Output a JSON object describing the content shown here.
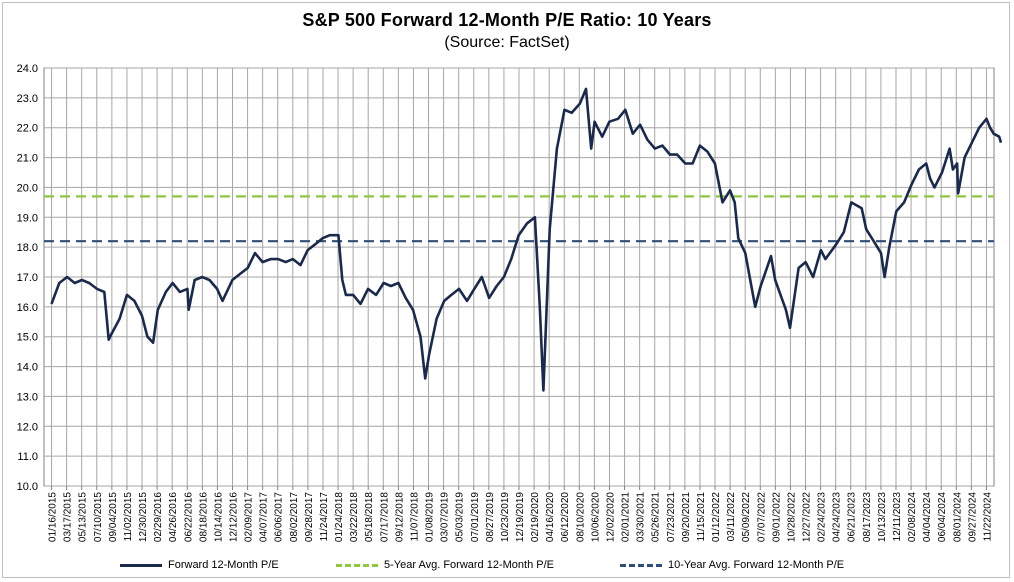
{
  "chart_data": {
    "type": "line",
    "title": "S&P 500 Forward 12-Month P/E Ratio: 10 Years",
    "subtitle": "(Source: FactSet)",
    "ylim": [
      10.0,
      24.0
    ],
    "yticks": [
      "10.0",
      "11.0",
      "12.0",
      "13.0",
      "14.0",
      "15.0",
      "16.0",
      "17.0",
      "18.0",
      "19.0",
      "20.0",
      "21.0",
      "22.0",
      "23.0",
      "24.0"
    ],
    "xticks": [
      "01/16/2015",
      "03/17/2015",
      "05/13/2015",
      "07/10/2015",
      "09/04/2015",
      "11/02/2015",
      "12/30/2015",
      "02/29/2016",
      "04/26/2016",
      "06/22/2016",
      "08/18/2016",
      "10/14/2016",
      "12/12/2016",
      "02/09/2017",
      "04/07/2017",
      "06/06/2017",
      "08/02/2017",
      "09/28/2017",
      "11/24/2017",
      "01/24/2018",
      "03/22/2018",
      "05/18/2018",
      "07/17/2018",
      "09/12/2018",
      "11/07/2018",
      "01/08/2019",
      "03/07/2019",
      "05/03/2019",
      "07/01/2019",
      "08/27/2019",
      "10/23/2019",
      "12/19/2019",
      "02/19/2020",
      "04/16/2020",
      "06/12/2020",
      "08/10/2020",
      "10/06/2020",
      "12/02/2020",
      "02/01/2021",
      "03/30/2021",
      "05/26/2021",
      "07/23/2021",
      "09/20/2021",
      "11/15/2021",
      "01/12/2022",
      "03/11/2022",
      "05/09/2022",
      "07/07/2022",
      "09/01/2022",
      "10/28/2022",
      "12/27/2022",
      "02/24/2023",
      "04/24/2023",
      "06/21/2023",
      "08/17/2023",
      "10/13/2023",
      "12/11/2023",
      "02/08/2024",
      "04/04/2024",
      "06/04/2024",
      "08/01/2024",
      "09/27/2024",
      "11/22/2024"
    ],
    "grid": true,
    "legend_position": "bottom",
    "series": [
      {
        "name": "Forward 12-Month P/E",
        "color": "#1b2a4a",
        "style": "solid",
        "x": [
          "01/16/2015",
          "02/15/2015",
          "03/17/2015",
          "04/15/2015",
          "05/13/2015",
          "06/10/2015",
          "07/10/2015",
          "08/07/2015",
          "08/24/2015",
          "09/04/2015",
          "10/05/2015",
          "11/02/2015",
          "12/01/2015",
          "12/30/2015",
          "01/20/2016",
          "02/11/2016",
          "02/29/2016",
          "03/31/2016",
          "04/26/2016",
          "05/24/2016",
          "06/22/2016",
          "06/27/2016",
          "07/20/2016",
          "08/18/2016",
          "09/15/2016",
          "10/14/2016",
          "11/04/2016",
          "12/12/2016",
          "01/10/2017",
          "02/09/2017",
          "03/09/2017",
          "04/07/2017",
          "05/08/2017",
          "06/06/2017",
          "07/05/2017",
          "08/02/2017",
          "08/31/2017",
          "09/28/2017",
          "10/27/2017",
          "11/24/2017",
          "12/22/2017",
          "01/24/2018",
          "02/08/2018",
          "02/22/2018",
          "03/22/2018",
          "04/19/2018",
          "05/18/2018",
          "06/18/2018",
          "07/17/2018",
          "08/14/2018",
          "09/12/2018",
          "10/10/2018",
          "11/07/2018",
          "12/06/2018",
          "12/24/2018",
          "01/08/2019",
          "02/06/2019",
          "03/07/2019",
          "04/04/2019",
          "05/03/2019",
          "06/03/2019",
          "07/01/2019",
          "07/30/2019",
          "08/27/2019",
          "09/25/2019",
          "10/23/2019",
          "11/20/2019",
          "12/19/2019",
          "01/20/2020",
          "02/19/2020",
          "03/09/2020",
          "03/23/2020",
          "04/16/2020",
          "05/14/2020",
          "06/12/2020",
          "07/10/2020",
          "08/10/2020",
          "09/03/2020",
          "09/23/2020",
          "10/06/2020",
          "11/04/2020",
          "12/02/2020",
          "01/04/2021",
          "02/01/2021",
          "03/02/2021",
          "03/30/2021",
          "04/27/2021",
          "05/26/2021",
          "06/24/2021",
          "07/23/2021",
          "08/20/2021",
          "09/20/2021",
          "10/18/2021",
          "11/15/2021",
          "12/14/2021",
          "01/12/2022",
          "02/10/2022",
          "03/11/2022",
          "03/29/2022",
          "04/12/2022",
          "05/09/2022",
          "06/16/2022",
          "07/07/2022",
          "08/16/2022",
          "09/01/2022",
          "09/30/2022",
          "10/12/2022",
          "10/28/2022",
          "11/30/2022",
          "12/27/2022",
          "01/25/2023",
          "02/24/2023",
          "03/13/2023",
          "04/24/2023",
          "05/23/2023",
          "06/21/2023",
          "07/31/2023",
          "08/17/2023",
          "09/15/2023",
          "10/13/2023",
          "10/27/2023",
          "11/14/2023",
          "12/11/2023",
          "01/10/2024",
          "02/08/2024",
          "03/07/2024",
          "04/04/2024",
          "04/19/2024",
          "05/06/2024",
          "06/04/2024",
          "07/03/2024",
          "07/16/2024",
          "08/01/2024",
          "08/05/2024",
          "08/30/2024",
          "09/27/2024",
          "10/25/2024",
          "11/22/2024",
          "12/06/2024",
          "12/20/2024",
          "01/10/2025",
          "01/17/2025"
        ],
        "values": [
          16.1,
          16.8,
          17.0,
          16.8,
          16.9,
          16.8,
          16.6,
          16.5,
          14.9,
          15.1,
          15.6,
          16.4,
          16.2,
          15.7,
          15.0,
          14.8,
          15.9,
          16.5,
          16.8,
          16.5,
          16.6,
          15.9,
          16.9,
          17.0,
          16.9,
          16.6,
          16.2,
          16.9,
          17.1,
          17.3,
          17.8,
          17.5,
          17.6,
          17.6,
          17.5,
          17.6,
          17.4,
          17.9,
          18.1,
          18.3,
          18.4,
          18.4,
          16.9,
          16.4,
          16.4,
          16.1,
          16.6,
          16.4,
          16.8,
          16.7,
          16.8,
          16.3,
          15.9,
          15.0,
          13.6,
          14.4,
          15.6,
          16.2,
          16.4,
          16.6,
          16.2,
          16.6,
          17.0,
          16.3,
          16.7,
          17.0,
          17.6,
          18.4,
          18.8,
          19.0,
          16.0,
          13.2,
          18.6,
          21.3,
          22.6,
          22.5,
          22.8,
          23.3,
          21.3,
          22.2,
          21.7,
          22.2,
          22.3,
          22.6,
          21.8,
          22.1,
          21.6,
          21.3,
          21.4,
          21.1,
          21.1,
          20.8,
          20.8,
          21.4,
          21.2,
          20.8,
          19.5,
          19.9,
          19.5,
          18.3,
          17.8,
          16.0,
          16.7,
          17.7,
          16.9,
          16.2,
          15.9,
          15.3,
          17.3,
          17.5,
          17.0,
          17.9,
          17.6,
          18.1,
          18.5,
          19.5,
          19.3,
          18.6,
          18.2,
          17.8,
          17.0,
          18.0,
          19.2,
          19.5,
          20.1,
          20.6,
          20.8,
          20.3,
          20.0,
          20.5,
          21.3,
          20.6,
          20.8,
          19.8,
          21.0,
          21.5,
          22.0,
          22.3,
          22.0,
          21.8,
          21.7,
          21.5
        ]
      },
      {
        "name": "5-Year Avg. Forward 12-Month P/E",
        "color": "#8fc640",
        "style": "dashed",
        "value": 19.7
      },
      {
        "name": "10-Year Avg. Forward 12-Month P/E",
        "color": "#2f4f78",
        "style": "dashed",
        "value": 18.2
      }
    ]
  }
}
